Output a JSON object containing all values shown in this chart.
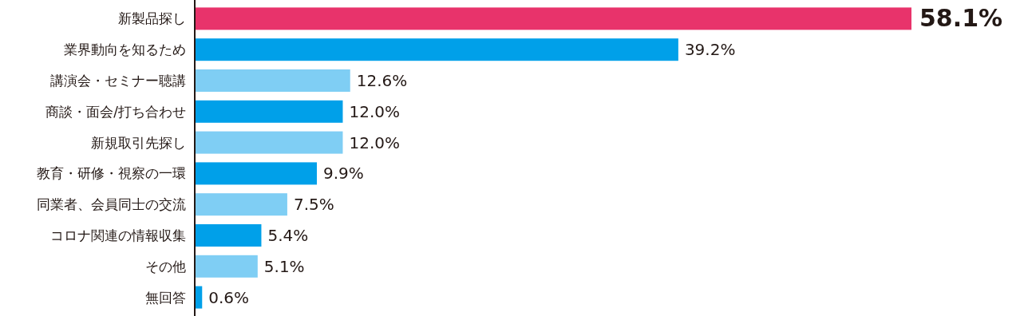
{
  "chart_data": {
    "type": "bar",
    "orientation": "horizontal",
    "categories": [
      "新製品探し",
      "業界動向を知るため",
      "講演会・セミナー聴講",
      "商談・面会/打ち合わせ",
      "新規取引先探し",
      "教育・研修・視察の一環",
      "同業者、会員同士の交流",
      "コロナ関連の情報収集",
      "その他",
      "無回答"
    ],
    "values": [
      58.1,
      39.2,
      12.6,
      12.0,
      12.0,
      9.9,
      7.5,
      5.4,
      5.1,
      0.6
    ],
    "colors": [
      "#e8336b",
      "#00a0e9",
      "#7fcef4",
      "#00a0e9",
      "#7fcef4",
      "#00a0e9",
      "#7fcef4",
      "#00a0e9",
      "#7fcef4",
      "#00a0e9"
    ],
    "value_labels": [
      "58.1%",
      "39.2%",
      "12.6%",
      "12.0%",
      "12.0%",
      "9.9%",
      "7.5%",
      "5.4%",
      "5.1%",
      "0.6%"
    ]
  }
}
